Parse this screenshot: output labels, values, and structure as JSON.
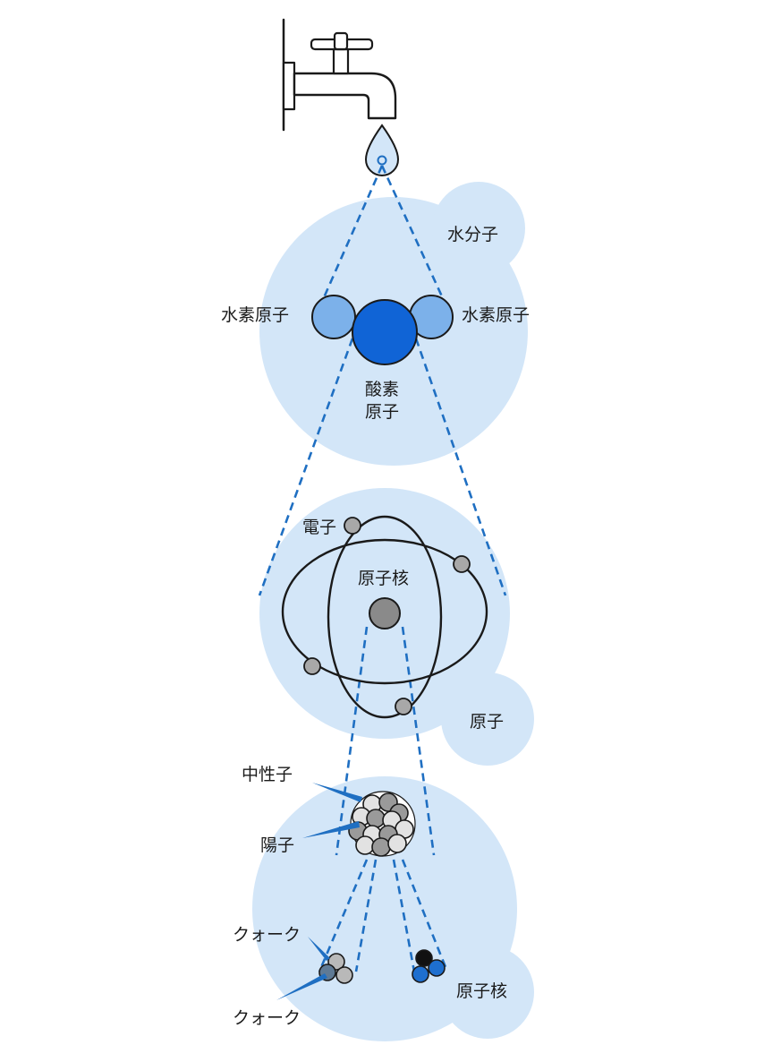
{
  "labels": {
    "water_molecule": "水分子",
    "hydrogen_left": "水素原子",
    "hydrogen_right": "水素原子",
    "oxygen_line1": "酸素",
    "oxygen_line2": "原子",
    "electron": "電子",
    "nucleus": "原子核",
    "atom": "原子",
    "neutron": "中性子",
    "proton": "陽子",
    "quark_top": "クォーク",
    "quark_bottom": "クォーク",
    "nucleus_bottom": "原子核"
  },
  "colors": {
    "bubble": "#d3e6f8",
    "dash": "#1f6fc2",
    "oxygen": "#1064d6",
    "hydrogen": "#7cb1ea",
    "electron": "#a8a8a8",
    "nucleus": "#8a8a8a",
    "outline": "#1a1a1a",
    "quark_blue": "#1e6fcf",
    "quark_black": "#111111"
  },
  "icons": {
    "faucet": "faucet-icon",
    "water_drop": "water-drop-icon"
  }
}
